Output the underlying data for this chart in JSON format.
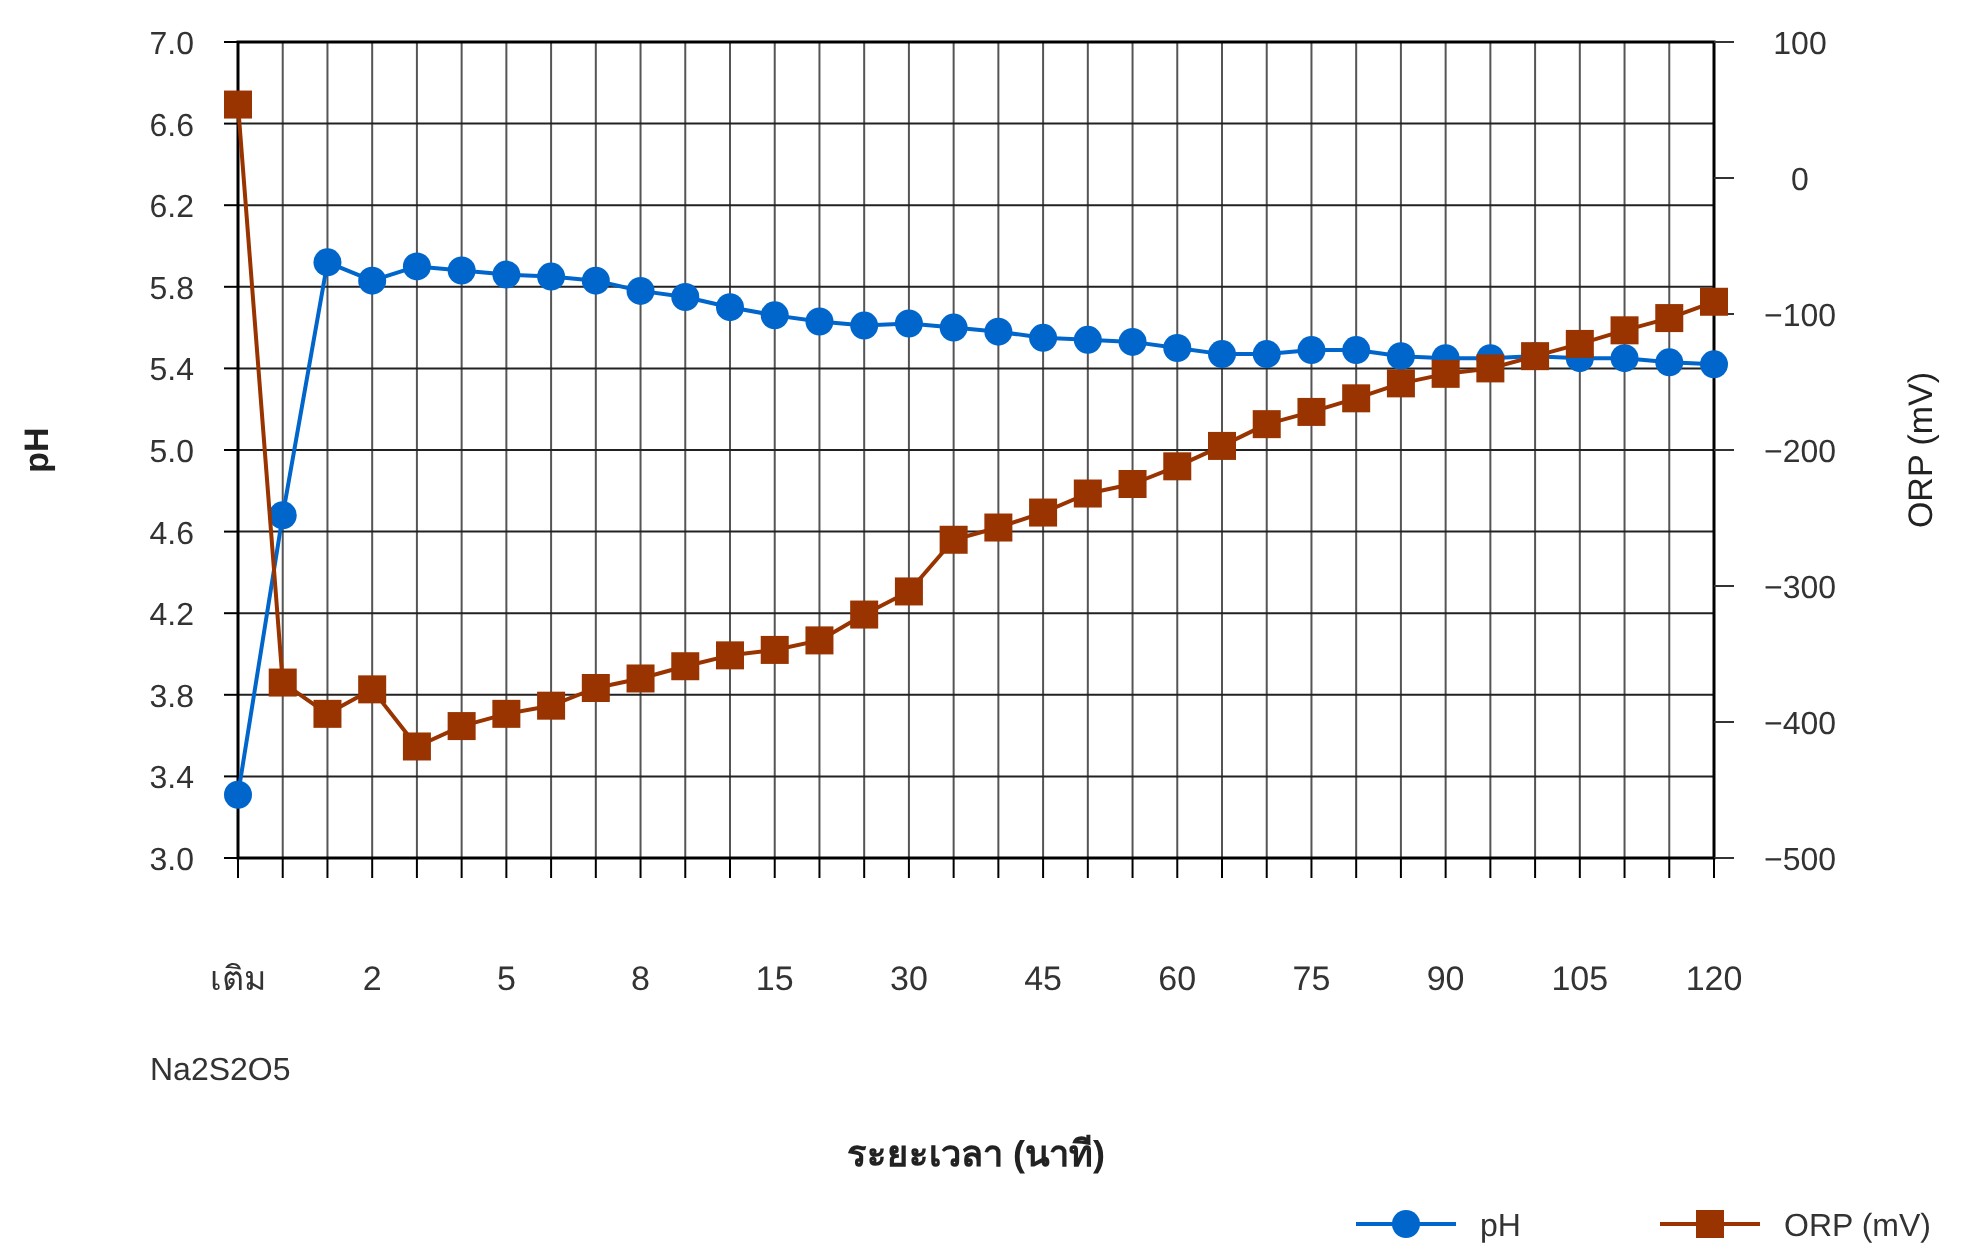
{
  "chart_data": {
    "type": "line",
    "categories": [
      "เติม",
      null,
      null,
      "2",
      null,
      null,
      "5",
      null,
      null,
      "8",
      null,
      null,
      "15",
      null,
      null,
      "30",
      null,
      null,
      "45",
      null,
      null,
      "60",
      null,
      null,
      "75",
      null,
      null,
      "90",
      null,
      null,
      "105",
      null,
      null,
      "120"
    ],
    "xlabel": "ระยะเวลา  (นาที)",
    "ylabel": "pH",
    "y2label": "ORP (mV)",
    "annotations": [
      "Na2S2O5"
    ],
    "series": [
      {
        "name": "pH",
        "color": "#0066cc",
        "marker": "circle",
        "values": [
          3.31,
          4.68,
          5.92,
          5.83,
          5.9,
          5.88,
          5.86,
          5.85,
          5.83,
          5.78,
          5.75,
          5.7,
          5.66,
          5.63,
          5.61,
          5.62,
          5.6,
          5.58,
          5.55,
          5.54,
          5.53,
          5.5,
          5.47,
          5.47,
          5.49,
          5.49,
          5.46,
          5.45,
          5.45,
          5.46,
          5.45,
          5.45,
          5.43,
          5.42
        ]
      },
      {
        "name": "ORP (mV)",
        "color": "#993300",
        "marker": "square",
        "axis": "y2",
        "values": [
          54,
          -371,
          -394,
          -376,
          -418,
          -403,
          -394,
          -388,
          -375,
          -368,
          -359,
          -351,
          -347,
          -340,
          -321,
          -304,
          -266,
          -257,
          -246,
          -232,
          -225,
          -212,
          -197,
          -181,
          -172,
          -162,
          -151,
          -144,
          -140,
          -131,
          -122,
          -112,
          -103,
          -91
        ]
      }
    ],
    "ylim": [
      3.0,
      7.0
    ],
    "yticks": [
      {
        "value": 3,
        "label": "3.0"
      },
      3.4,
      3.8,
      4.2,
      4.6,
      {
        "value": 5,
        "label": "5.0"
      },
      5.4,
      5.8,
      6.2,
      6.6,
      {
        "value": 7,
        "label": "7.0"
      }
    ],
    "y2lim": [
      -500,
      100
    ],
    "y2ticks": [
      -500,
      -400,
      -300,
      -200,
      -100,
      0,
      100
    ],
    "grid": true,
    "legend": "bottom right"
  }
}
